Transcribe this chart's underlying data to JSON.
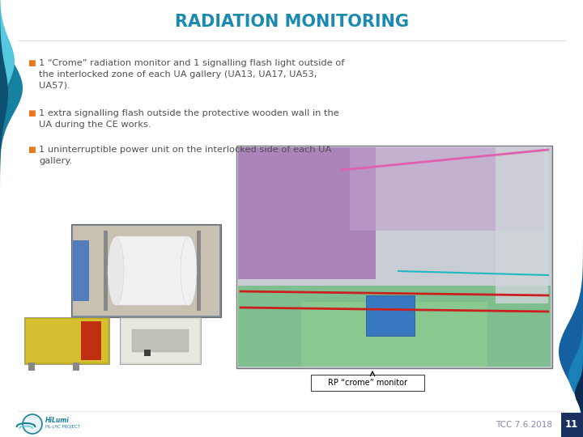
{
  "title": "RADIATION MONITORING",
  "title_color": "#1a8ab0",
  "title_fontsize": 15,
  "bg_color": "#ffffff",
  "bullet_color": "#e87722",
  "text_color": "#505050",
  "bullet1": "1 “Crome” radiation monitor and 1 signalling flash light outside of\nthe interlocked zone of each UA gallery (UA13, UA17, UA53,\nUA57).",
  "bullet2": "1 extra signalling flash outside the protective wooden wall in the\nUA during the CE works.",
  "bullet3": "1 uninterruptible power unit on the interlocked side of each UA\ngallery.",
  "footer_text": "TCC 7.6.2018",
  "footer_page": "11",
  "footer_color": "#8888aa",
  "label_text": "RP “crome” monitor",
  "text_fontsize": 8.2,
  "footer_fontsize": 7.5,
  "page_bg_color": "#1a3a6a",
  "left_dark": "#0d6080",
  "left_mid": "#1a90b8",
  "left_light": "#55c8e0",
  "right_dark": "#0d3060",
  "right_mid": "#1a60a0"
}
